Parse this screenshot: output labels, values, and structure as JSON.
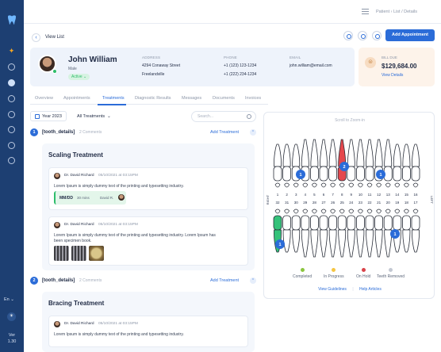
{
  "sidebar": {
    "language": "En",
    "version_label": "Ver",
    "version": "1.30"
  },
  "topbar": {
    "breadcrumb": "Patient  ›  List / Details"
  },
  "header": {
    "back_label": "View List",
    "add_appointment": "Add Appointment"
  },
  "patient": {
    "name": "John William",
    "gender": "Male",
    "status": "Active",
    "address_label": "ADDRESS",
    "address_line1": "4294 Conaway Street",
    "address_line2": "Freelandville",
    "phone_label": "PHONE",
    "phone_1": "+1 (123) 123-1234",
    "phone_2": "+1 (222) 234-1234",
    "email_label": "EMAIL",
    "email": "john.william@email.com"
  },
  "bill": {
    "label": "BILL DUE",
    "amount": "$129,684.00",
    "link": "View Details"
  },
  "tabs": [
    "Overview",
    "Appointments",
    "Treatments",
    "Diagnostic Results",
    "Messages",
    "Documents",
    "Invoices"
  ],
  "active_tab": "Treatments",
  "filters": {
    "year": "Year 2023",
    "treatments": "All Treatments",
    "search_placeholder": "Search..."
  },
  "sections": [
    {
      "number": "1",
      "title": "[tooth_details]",
      "count": "2 Comments",
      "add_label": "Add Treatment",
      "treatment": "Scaling Treatment",
      "notes": [
        {
          "doctor": "Dr. David Richard",
          "time": "05/10/2021 at 03:15PM",
          "text": "Lorem Ipsum is simply dummy text of the printing and typesetting industry.",
          "tag": {
            "code": "MM/DD",
            "duration": "30 mins",
            "doctor": "David R."
          }
        },
        {
          "doctor": "Dr. David Richard",
          "time": "05/10/2021 at 03:15PM",
          "text_line1": "Lorem Ipsum is simply dummy text of the printing and typesetting industry. Lorem Ipsum has",
          "text_line2": "been specimen book."
        }
      ]
    },
    {
      "number": "2",
      "title": "[tooth_details]",
      "count": "2 Comments",
      "add_label": "Add Treatment",
      "treatment": "Bracing Treatment",
      "notes": [
        {
          "doctor": "Dr. David Richard",
          "time": "05/10/2021 at 03:15PM",
          "text": "Lorem Ipsum is simply dummy text of the printing and typesetting industry."
        }
      ]
    }
  ],
  "tooth_chart": {
    "hint": "Scroll to Zoom-in",
    "upper_numbers": [
      "1",
      "2",
      "3",
      "4",
      "5",
      "6",
      "7",
      "8",
      "9",
      "10",
      "11",
      "12",
      "13",
      "14",
      "15",
      "16"
    ],
    "lower_numbers": [
      "32",
      "31",
      "30",
      "29",
      "28",
      "27",
      "26",
      "25",
      "24",
      "23",
      "22",
      "21",
      "20",
      "19",
      "18",
      "17"
    ],
    "side_right": "RIGHT",
    "side_left": "LEFT",
    "markers": [
      "1",
      "2",
      "1",
      "1",
      "1"
    ],
    "colors": {
      "completed": "#8bc53f",
      "in_progress": "#f5c542",
      "on_hold": "#d9434a",
      "removed": "#c3c8d2",
      "marker": "#2b6cd8"
    },
    "legend": [
      "Completed",
      "In Progress",
      "On Hold",
      "Teeth Removed"
    ],
    "link_guidelines": "View Guidelines",
    "link_articles": "Help Articles"
  }
}
